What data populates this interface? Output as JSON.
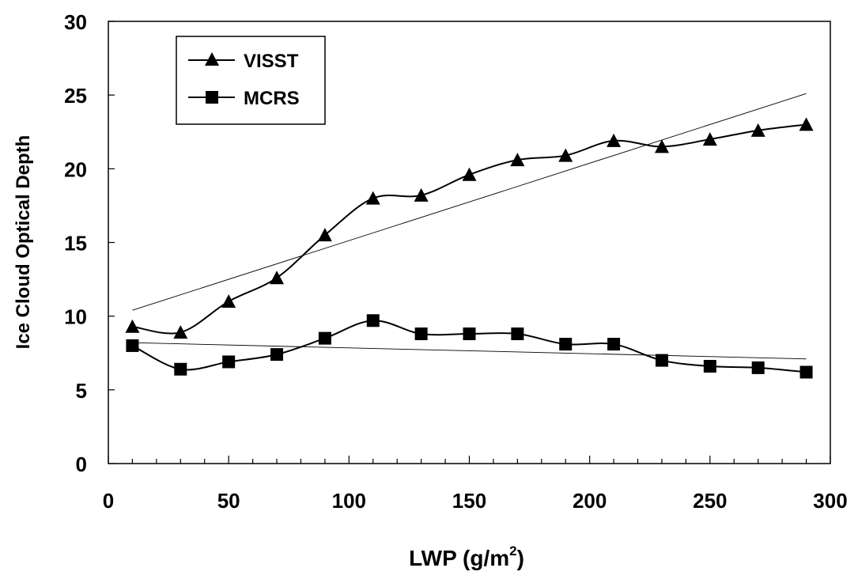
{
  "chart_data": {
    "type": "line",
    "x": [
      10,
      30,
      50,
      70,
      90,
      110,
      130,
      150,
      170,
      190,
      210,
      230,
      250,
      270,
      290
    ],
    "series": [
      {
        "name": "VISST",
        "marker": "triangle",
        "values": [
          9.3,
          8.9,
          11.0,
          12.6,
          15.5,
          18.0,
          18.2,
          19.6,
          20.6,
          20.9,
          21.9,
          21.5,
          22.0,
          22.6,
          23.0
        ],
        "trendline": [
          10.4,
          25.1
        ]
      },
      {
        "name": "MCRS",
        "marker": "square",
        "values": [
          8.0,
          6.4,
          6.9,
          7.4,
          8.5,
          9.7,
          8.8,
          8.8,
          8.8,
          8.1,
          8.1,
          7.0,
          6.6,
          6.5,
          6.2
        ],
        "trendline": [
          8.2,
          7.1
        ]
      }
    ],
    "xlabel": "LWP (g/m",
    "xlabel_superscript": "2",
    "xlabel_suffix": ")",
    "ylabel": "Ice Cloud Optical Depth",
    "xlim": [
      0,
      300
    ],
    "ylim": [
      0,
      30
    ],
    "x_ticks": [
      0,
      50,
      100,
      150,
      200,
      250,
      300
    ],
    "y_ticks": [
      0,
      5,
      10,
      15,
      20,
      25,
      30
    ],
    "x_tick_labels": [
      "0",
      "50",
      "100",
      "150",
      "200",
      "250",
      "300"
    ],
    "y_tick_labels": [
      "0",
      "5",
      "10",
      "15",
      "20",
      "25",
      "30"
    ],
    "grid": false,
    "legend_position": "top-left",
    "line_color": "#000000"
  }
}
